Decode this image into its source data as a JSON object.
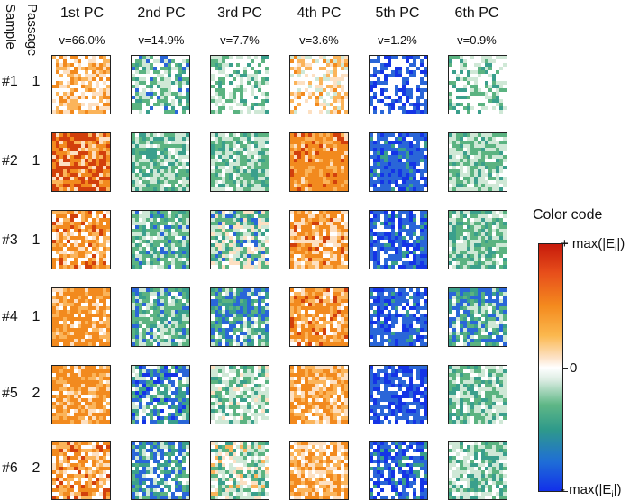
{
  "headers": {
    "sample": "Sample",
    "passage": "Passage"
  },
  "components": [
    {
      "title": "1st PC",
      "variance": "v=66.0%"
    },
    {
      "title": "2nd PC",
      "variance": "v=14.9%"
    },
    {
      "title": "3rd PC",
      "variance": "v=7.7%"
    },
    {
      "title": "4th PC",
      "variance": "v=3.6%"
    },
    {
      "title": "5th PC",
      "variance": "v=1.2%"
    },
    {
      "title": "6th PC",
      "variance": "v=0.9%"
    }
  ],
  "rows": [
    {
      "sample": "#1",
      "passage": "1"
    },
    {
      "sample": "#2",
      "passage": "1"
    },
    {
      "sample": "#3",
      "passage": "1"
    },
    {
      "sample": "#4",
      "passage": "1"
    },
    {
      "sample": "#5",
      "passage": "2"
    },
    {
      "sample": "#6",
      "passage": "2"
    }
  ],
  "color_code": {
    "title": "Color code",
    "max_label": "+ max(|E",
    "min_label": "- max(|E",
    "subscript": "i",
    "suffix": "|)",
    "zero_label": "0"
  },
  "colors": {
    "orange_dark": "#d2400c",
    "orange": "#f28a1e",
    "orange_light": "#fbb45a",
    "peach": "#fde0c2",
    "mint": "#cfe8d6",
    "green": "#5bb381",
    "teal": "#3a9f8c",
    "blue": "#2a66d8",
    "blue_dark": "#1434e6"
  },
  "tile_palettes": [
    [
      "orange_light",
      "peach",
      "orange",
      "orange_light",
      "orange",
      "peach",
      "white",
      "white",
      "white"
    ],
    [
      "mint",
      "green",
      "teal",
      "blue",
      "white",
      "white",
      "white",
      "green",
      "mint"
    ],
    [
      "mint",
      "green",
      "teal",
      "mint",
      "white",
      "white",
      "white",
      "white",
      "green"
    ],
    [
      "peach",
      "orange_light",
      "orange",
      "mint",
      "white",
      "white",
      "white",
      "white",
      "orange_light"
    ],
    [
      "blue",
      "blue_dark",
      "blue",
      "white",
      "white",
      "white",
      "white",
      "blue",
      "blue_dark"
    ],
    [
      "mint",
      "green",
      "teal",
      "mint",
      "white",
      "white",
      "white",
      "white",
      "white"
    ],
    [
      "orange_dark",
      "orange",
      "orange_dark",
      "orange",
      "orange_dark",
      "orange_light",
      "orange",
      "peach",
      "orange_dark"
    ],
    [
      "green",
      "mint",
      "teal",
      "green",
      "mint",
      "green",
      "teal",
      "mint",
      "white"
    ],
    [
      "green",
      "mint",
      "teal",
      "green",
      "mint",
      "green",
      "white",
      "mint",
      "teal"
    ],
    [
      "orange",
      "orange_light",
      "orange",
      "orange",
      "orange_light",
      "orange",
      "orange_dark",
      "peach",
      "orange"
    ],
    [
      "blue",
      "blue_dark",
      "blue",
      "blue",
      "blue_dark",
      "blue",
      "white",
      "teal",
      "blue"
    ],
    [
      "mint",
      "green",
      "mint",
      "teal",
      "mint",
      "green",
      "white",
      "mint",
      "green"
    ],
    [
      "orange",
      "orange_light",
      "orange",
      "white",
      "orange",
      "orange_dark",
      "peach",
      "orange_light",
      "white"
    ],
    [
      "green",
      "teal",
      "blue",
      "mint",
      "green",
      "white",
      "teal",
      "mint",
      "green"
    ],
    [
      "mint",
      "green",
      "peach",
      "blue",
      "teal",
      "white",
      "mint",
      "green",
      "peach"
    ],
    [
      "orange",
      "orange_light",
      "peach",
      "orange",
      "orange_light",
      "white",
      "orange",
      "orange_dark",
      "peach"
    ],
    [
      "blue",
      "blue_dark",
      "blue",
      "white",
      "blue",
      "blue_dark",
      "white",
      "blue",
      "teal"
    ],
    [
      "mint",
      "green",
      "teal",
      "mint",
      "white",
      "green",
      "teal",
      "mint",
      "green"
    ],
    [
      "orange",
      "orange_light",
      "orange",
      "peach",
      "orange",
      "white",
      "orange_light",
      "orange",
      "orange"
    ],
    [
      "green",
      "teal",
      "mint",
      "blue",
      "green",
      "teal",
      "white",
      "green",
      "mint"
    ],
    [
      "blue",
      "teal",
      "green",
      "mint",
      "blue",
      "teal",
      "green",
      "white",
      "blue"
    ],
    [
      "orange",
      "orange_light",
      "orange",
      "peach",
      "orange",
      "orange_light",
      "white",
      "orange",
      "orange_dark"
    ],
    [
      "blue",
      "blue_dark",
      "blue",
      "blue",
      "teal",
      "white",
      "blue",
      "blue_dark",
      "white"
    ],
    [
      "green",
      "blue",
      "teal",
      "mint",
      "green",
      "blue",
      "white",
      "teal",
      "blue"
    ],
    [
      "orange",
      "orange_light",
      "orange",
      "peach",
      "orange",
      "orange_light",
      "white",
      "orange",
      "orange"
    ],
    [
      "blue",
      "teal",
      "green",
      "white",
      "blue",
      "blue_dark",
      "teal",
      "mint",
      "white"
    ],
    [
      "mint",
      "green",
      "white",
      "teal",
      "mint",
      "white",
      "green",
      "peach",
      "mint"
    ],
    [
      "orange",
      "orange_light",
      "peach",
      "orange",
      "orange_light",
      "white",
      "orange",
      "peach",
      "orange_light"
    ],
    [
      "blue_dark",
      "blue",
      "blue_dark",
      "blue",
      "white",
      "blue_dark",
      "blue",
      "white",
      "blue"
    ],
    [
      "green",
      "mint",
      "teal",
      "green",
      "mint",
      "white",
      "green",
      "teal",
      "mint"
    ],
    [
      "orange",
      "orange_light",
      "orange",
      "white",
      "orange_dark",
      "peach",
      "orange",
      "white",
      "orange_light"
    ],
    [
      "blue",
      "teal",
      "green",
      "blue",
      "white",
      "white",
      "teal",
      "mint",
      "blue"
    ],
    [
      "mint",
      "green",
      "peach",
      "white",
      "teal",
      "mint",
      "green",
      "orange_light",
      "white"
    ],
    [
      "orange",
      "peach",
      "orange_light",
      "white",
      "orange",
      "peach",
      "white",
      "orange_light",
      "orange"
    ],
    [
      "blue",
      "blue_dark",
      "white",
      "blue",
      "white",
      "blue_dark",
      "blue",
      "white",
      "teal"
    ],
    [
      "mint",
      "green",
      "teal",
      "mint",
      "white",
      "green",
      "mint",
      "teal",
      "white"
    ]
  ]
}
